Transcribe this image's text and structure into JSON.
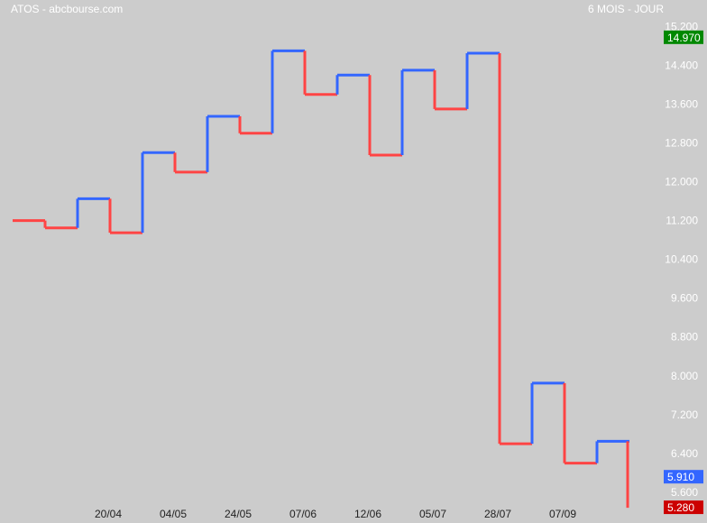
{
  "header": {
    "left": "ATOS - abcbourse.com",
    "right": "6 MOIS - JOUR"
  },
  "colors": {
    "background": "#cccccc",
    "up": "#3366ff",
    "down": "#ff4444",
    "label_text": "#ffffff",
    "high_badge": "#008800",
    "blue_badge": "#3366ff",
    "low_badge": "#cc0000"
  },
  "chart_data": {
    "type": "line",
    "style": "step",
    "title": "",
    "xlabel": "",
    "ylabel": "",
    "ylim": [
      5.3,
      15.45
    ],
    "y_ticks": [
      "15.200",
      "14.400",
      "13.600",
      "12.800",
      "12.000",
      "11.200",
      "10.400",
      "9.600",
      "8.800",
      "8.000",
      "7.200",
      "6.400",
      "5.600"
    ],
    "x_ticks": [
      "20/04",
      "04/05",
      "24/05",
      "07/06",
      "12/06",
      "05/07",
      "28/07",
      "07/09"
    ],
    "grid": false,
    "legend": "none",
    "series": [
      {
        "values": [
          11.2,
          11.05,
          11.65,
          10.95,
          12.6,
          12.2,
          13.35,
          13.0,
          14.7,
          13.8,
          14.2,
          12.55,
          14.3,
          13.5,
          14.65,
          6.6,
          7.85,
          6.2,
          6.65
        ]
      }
    ],
    "final_low": 5.28,
    "badges": [
      {
        "label": "14.970",
        "value": 14.97,
        "color": "high_badge"
      },
      {
        "label": "5.910",
        "value": 5.91,
        "color": "blue_badge"
      },
      {
        "label": "5.280",
        "value": 5.28,
        "color": "low_badge"
      }
    ]
  }
}
